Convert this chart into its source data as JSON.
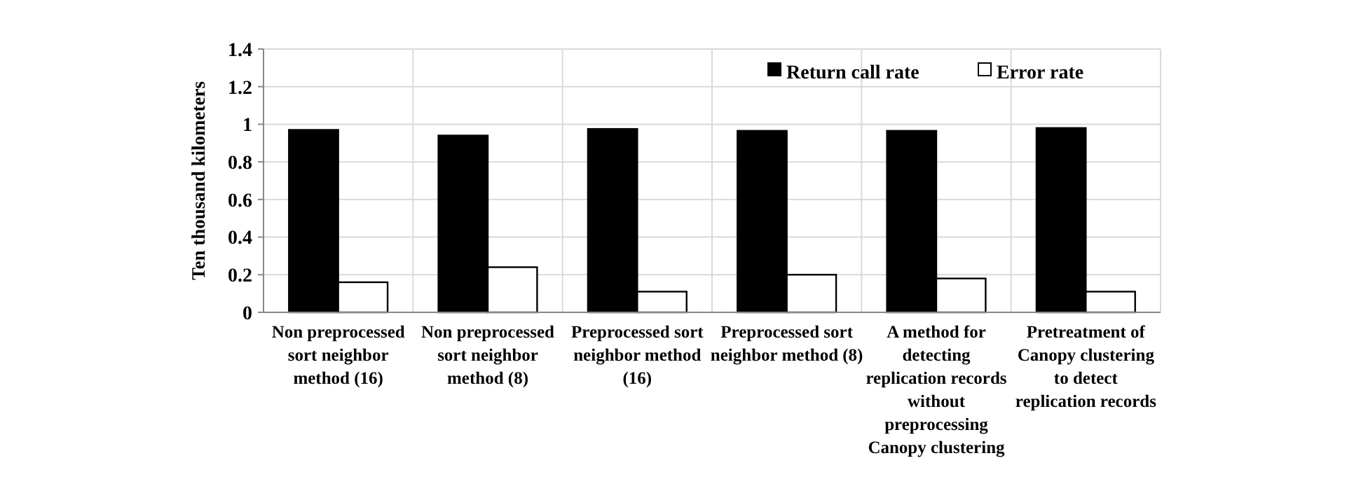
{
  "chart_data": {
    "type": "bar",
    "ylabel": "Ten thousand kilometers",
    "categories": [
      "Non preprocessed sort neighbor method (16)",
      "Non preprocessed sort neighbor method (8)",
      "Preprocessed sort neighbor method (16)",
      "Preprocessed sort neighbor method (8)",
      "A method for detecting replication records without preprocessing Canopy clustering",
      "Pretreatment of Canopy clustering to detect replication records"
    ],
    "series": [
      {
        "name": "Return call rate",
        "color": "#000000",
        "values": [
          0.97,
          0.94,
          0.975,
          0.965,
          0.965,
          0.98
        ]
      },
      {
        "name": "Error rate",
        "color": "#ffffff",
        "values": [
          0.16,
          0.24,
          0.11,
          0.2,
          0.18,
          0.11
        ]
      }
    ],
    "ylim": [
      0,
      1.4
    ],
    "yticks": [
      0,
      0.2,
      0.4,
      0.6,
      0.8,
      1,
      1.2,
      1.4
    ],
    "grid": true,
    "legend": "top right"
  }
}
